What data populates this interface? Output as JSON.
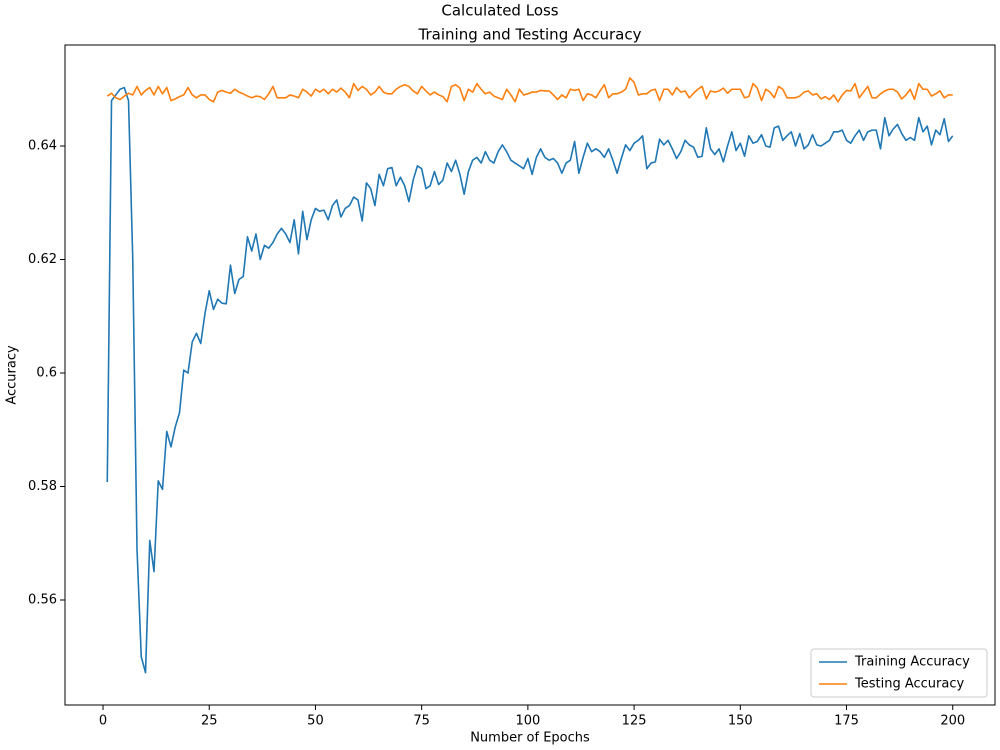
{
  "chart_data": {
    "type": "line",
    "suptitle": "Calculated Loss",
    "title": "Training and Testing Accuracy",
    "xlabel": "Number of Epochs",
    "ylabel": "Accuracy",
    "xlim": [
      -8.95,
      209.95
    ],
    "ylim": [
      0.5415,
      0.6578
    ],
    "xticks": [
      0,
      25,
      50,
      75,
      100,
      125,
      150,
      175,
      200
    ],
    "yticks": [
      0.56,
      0.58,
      0.6,
      0.62,
      0.64
    ],
    "legend": "lower right",
    "x": [
      1,
      2,
      3,
      4,
      5,
      6,
      7,
      8,
      9,
      10,
      11,
      12,
      13,
      14,
      15,
      16,
      17,
      18,
      19,
      20,
      21,
      22,
      23,
      24,
      25,
      26,
      27,
      28,
      29,
      30,
      31,
      32,
      33,
      34,
      35,
      36,
      37,
      38,
      39,
      40,
      41,
      42,
      43,
      44,
      45,
      46,
      47,
      48,
      49,
      50,
      51,
      52,
      53,
      54,
      55,
      56,
      57,
      58,
      59,
      60,
      61,
      62,
      63,
      64,
      65,
      66,
      67,
      68,
      69,
      70,
      71,
      72,
      73,
      74,
      75,
      76,
      77,
      78,
      79,
      80,
      81,
      82,
      83,
      84,
      85,
      86,
      87,
      88,
      89,
      90,
      91,
      92,
      93,
      94,
      95,
      96,
      97,
      98,
      99,
      100,
      101,
      102,
      103,
      104,
      105,
      106,
      107,
      108,
      109,
      110,
      111,
      112,
      113,
      114,
      115,
      116,
      117,
      118,
      119,
      120,
      121,
      122,
      123,
      124,
      125,
      126,
      127,
      128,
      129,
      130,
      131,
      132,
      133,
      134,
      135,
      136,
      137,
      138,
      139,
      140,
      141,
      142,
      143,
      144,
      145,
      146,
      147,
      148,
      149,
      150,
      151,
      152,
      153,
      154,
      155,
      156,
      157,
      158,
      159,
      160,
      161,
      162,
      163,
      164,
      165,
      166,
      167,
      168,
      169,
      170,
      171,
      172,
      173,
      174,
      175,
      176,
      177,
      178,
      179,
      180,
      181,
      182,
      183,
      184,
      185,
      186,
      187,
      188,
      189,
      190,
      191,
      192,
      193,
      194,
      195,
      196,
      197,
      198,
      199,
      200
    ],
    "series": [
      {
        "name": "Training Accuracy",
        "color": "#1f77b4",
        "values": [
          0.5808,
          0.648,
          0.649,
          0.65,
          0.6503,
          0.648,
          0.62,
          0.569,
          0.55,
          0.5472,
          0.5705,
          0.565,
          0.581,
          0.5795,
          0.5897,
          0.587,
          0.5905,
          0.593,
          0.6005,
          0.6,
          0.6055,
          0.607,
          0.6052,
          0.6105,
          0.6145,
          0.6112,
          0.613,
          0.6123,
          0.6122,
          0.619,
          0.614,
          0.6165,
          0.617,
          0.624,
          0.6215,
          0.6245,
          0.62,
          0.6225,
          0.622,
          0.623,
          0.6245,
          0.6255,
          0.6245,
          0.623,
          0.627,
          0.621,
          0.6285,
          0.6235,
          0.627,
          0.629,
          0.6285,
          0.6287,
          0.627,
          0.6295,
          0.6305,
          0.6275,
          0.629,
          0.6295,
          0.631,
          0.6305,
          0.6268,
          0.6335,
          0.6325,
          0.6295,
          0.635,
          0.633,
          0.636,
          0.6362,
          0.633,
          0.6345,
          0.633,
          0.6302,
          0.634,
          0.6365,
          0.636,
          0.6325,
          0.633,
          0.6355,
          0.6332,
          0.634,
          0.637,
          0.6355,
          0.6375,
          0.635,
          0.6315,
          0.6355,
          0.6375,
          0.638,
          0.637,
          0.639,
          0.6375,
          0.637,
          0.639,
          0.6402,
          0.639,
          0.6375,
          0.637,
          0.6365,
          0.636,
          0.6378,
          0.635,
          0.638,
          0.6395,
          0.638,
          0.6375,
          0.6378,
          0.637,
          0.6352,
          0.637,
          0.6375,
          0.6408,
          0.6352,
          0.638,
          0.6405,
          0.639,
          0.6395,
          0.639,
          0.638,
          0.6395,
          0.6375,
          0.6352,
          0.6378,
          0.6402,
          0.6392,
          0.6405,
          0.641,
          0.6418,
          0.636,
          0.637,
          0.6372,
          0.6412,
          0.6402,
          0.641,
          0.6395,
          0.6378,
          0.639,
          0.641,
          0.6402,
          0.6398,
          0.638,
          0.6382,
          0.6432,
          0.6395,
          0.6385,
          0.6395,
          0.6372,
          0.64,
          0.6425,
          0.6392,
          0.6405,
          0.6382,
          0.6418,
          0.6405,
          0.6408,
          0.642,
          0.64,
          0.6398,
          0.6432,
          0.6435,
          0.641,
          0.6418,
          0.6425,
          0.64,
          0.6422,
          0.6395,
          0.6402,
          0.642,
          0.6402,
          0.64,
          0.6405,
          0.641,
          0.6425,
          0.6425,
          0.6428,
          0.641,
          0.6405,
          0.6418,
          0.6428,
          0.641,
          0.6425,
          0.6428,
          0.6428,
          0.6395,
          0.645,
          0.6418,
          0.643,
          0.6438,
          0.6422,
          0.641,
          0.6415,
          0.641,
          0.645,
          0.6425,
          0.6435,
          0.6402,
          0.6428,
          0.642,
          0.6448,
          0.6408,
          0.6418
        ]
      },
      {
        "name": "Testing Accuracy",
        "color": "#ff7f0e",
        "values": [
          0.6488,
          0.6493,
          0.6485,
          0.6482,
          0.6488,
          0.6493,
          0.649,
          0.6505,
          0.649,
          0.6498,
          0.6503,
          0.649,
          0.6505,
          0.6492,
          0.6503,
          0.648,
          0.6483,
          0.6487,
          0.649,
          0.6503,
          0.649,
          0.6485,
          0.649,
          0.649,
          0.6482,
          0.6478,
          0.6495,
          0.6498,
          0.6495,
          0.6493,
          0.65,
          0.6495,
          0.6492,
          0.6488,
          0.6485,
          0.6488,
          0.6487,
          0.6482,
          0.6492,
          0.6505,
          0.6485,
          0.6485,
          0.6485,
          0.649,
          0.6488,
          0.6485,
          0.65,
          0.6495,
          0.6488,
          0.65,
          0.6495,
          0.65,
          0.6492,
          0.65,
          0.6495,
          0.6502,
          0.6495,
          0.6485,
          0.651,
          0.6498,
          0.6505,
          0.65,
          0.649,
          0.6495,
          0.6505,
          0.6495,
          0.6492,
          0.6492,
          0.65,
          0.6505,
          0.6508,
          0.6505,
          0.6497,
          0.6492,
          0.6505,
          0.6497,
          0.649,
          0.6495,
          0.649,
          0.6487,
          0.6478,
          0.6505,
          0.6508,
          0.6502,
          0.648,
          0.65,
          0.6495,
          0.651,
          0.65,
          0.6492,
          0.6495,
          0.6488,
          0.6485,
          0.6482,
          0.65,
          0.649,
          0.6478,
          0.65,
          0.649,
          0.6492,
          0.6495,
          0.6495,
          0.6498,
          0.6497,
          0.6497,
          0.649,
          0.6482,
          0.649,
          0.6485,
          0.65,
          0.6498,
          0.65,
          0.648,
          0.6492,
          0.649,
          0.6485,
          0.6497,
          0.6508,
          0.6485,
          0.6492,
          0.6492,
          0.6495,
          0.65,
          0.652,
          0.6512,
          0.649,
          0.6492,
          0.6492,
          0.6498,
          0.65,
          0.648,
          0.65,
          0.65,
          0.649,
          0.6503,
          0.6495,
          0.6497,
          0.6485,
          0.6493,
          0.65,
          0.6505,
          0.6483,
          0.6497,
          0.6495,
          0.6497,
          0.6502,
          0.6493,
          0.65,
          0.65,
          0.65,
          0.6485,
          0.6487,
          0.651,
          0.6502,
          0.648,
          0.65,
          0.6495,
          0.6485,
          0.6505,
          0.65,
          0.6485,
          0.6485,
          0.6485,
          0.6488,
          0.6495,
          0.6497,
          0.649,
          0.6492,
          0.6483,
          0.6487,
          0.6482,
          0.649,
          0.6478,
          0.649,
          0.6498,
          0.6497,
          0.651,
          0.6485,
          0.6495,
          0.6505,
          0.6485,
          0.6485,
          0.6492,
          0.6497,
          0.65,
          0.65,
          0.6495,
          0.6483,
          0.649,
          0.65,
          0.6482,
          0.651,
          0.65,
          0.65,
          0.6488,
          0.6492,
          0.6497,
          0.6485,
          0.649,
          0.649
        ]
      }
    ]
  }
}
